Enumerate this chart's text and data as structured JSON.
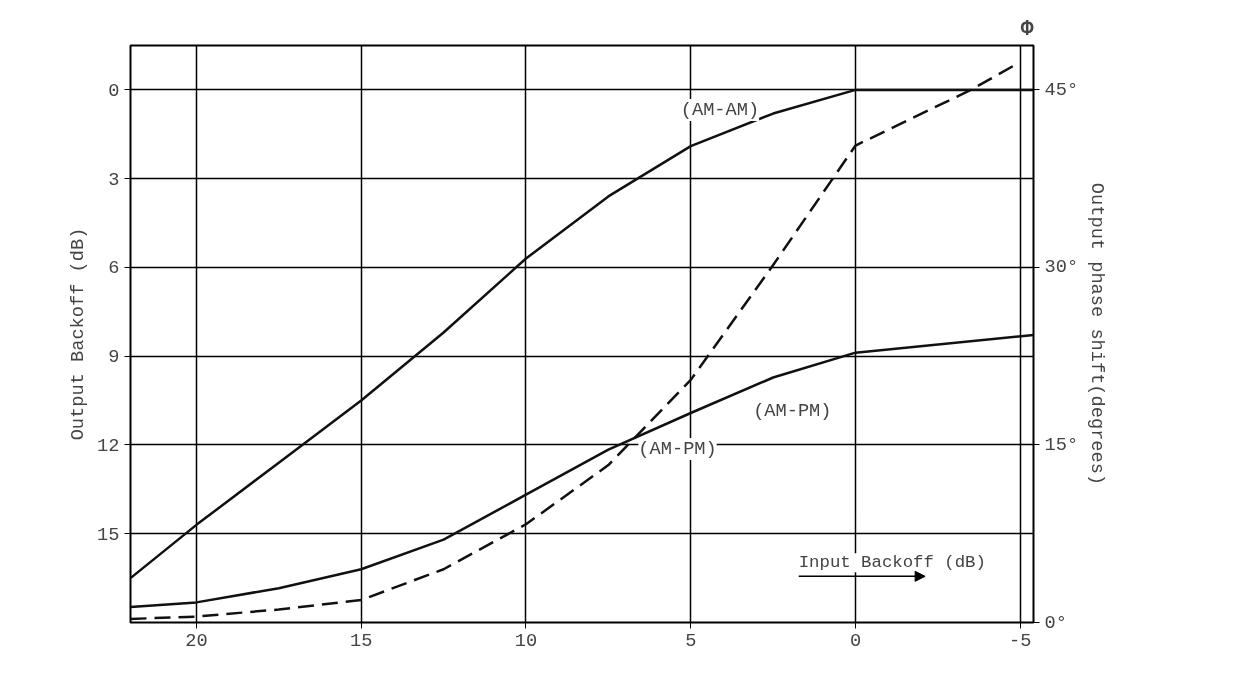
{
  "chart_data": {
    "type": "line",
    "title": "Φ",
    "xlabel": "Input Backoff (dB)",
    "ylabel": "Output Backoff (dB)",
    "y2label": "Output phase shift(degrees)",
    "xlim": [
      22,
      -5.4
    ],
    "xticks": [
      20,
      15,
      10,
      5,
      0,
      -5
    ],
    "ylim": [
      18,
      -1.5
    ],
    "yticks": [
      0,
      3,
      6,
      9,
      12,
      15
    ],
    "y2lim": [
      0,
      48.75
    ],
    "y2ticks": [
      {
        "value": 0,
        "label": "0°"
      },
      {
        "value": 15,
        "label": "15°"
      },
      {
        "value": 30,
        "label": "30°"
      },
      {
        "value": 45,
        "label": "45°"
      }
    ],
    "grid": true,
    "legend": false,
    "marker": "none",
    "series": [
      {
        "name": "(AM-AM)",
        "color": "#111111",
        "line_style": "solid",
        "x": [
          22,
          20,
          17.5,
          15,
          12.5,
          10,
          7.5,
          5,
          2.5,
          0,
          -5.4
        ],
        "values": [
          16.5,
          14.7,
          12.6,
          10.5,
          8.2,
          5.7,
          3.6,
          1.9,
          0.8,
          0,
          0
        ]
      },
      {
        "name": "(AM-PM)",
        "color": "#111111",
        "line_style": "dashed",
        "axis": "y2",
        "x": [
          22,
          20,
          17.5,
          15,
          12.5,
          10,
          7.5,
          5,
          2.5,
          0,
          -3.5,
          -4.9
        ],
        "values": [
          0.3,
          0.5,
          1.1,
          1.9,
          4.5,
          8.3,
          13.3,
          20.5,
          30.2,
          40.3,
          45,
          47.2
        ]
      },
      {
        "name": "(AM-PM)",
        "color": "#111111",
        "line_style": "solid",
        "axis": "y2",
        "x": [
          22,
          20,
          17.5,
          15,
          12.5,
          10,
          7.5,
          5,
          2.5,
          0,
          -5.4
        ],
        "values": [
          1.3,
          1.7,
          2.9,
          4.5,
          7.0,
          10.8,
          14.6,
          17.7,
          20.7,
          22.8,
          24.3
        ]
      }
    ]
  }
}
